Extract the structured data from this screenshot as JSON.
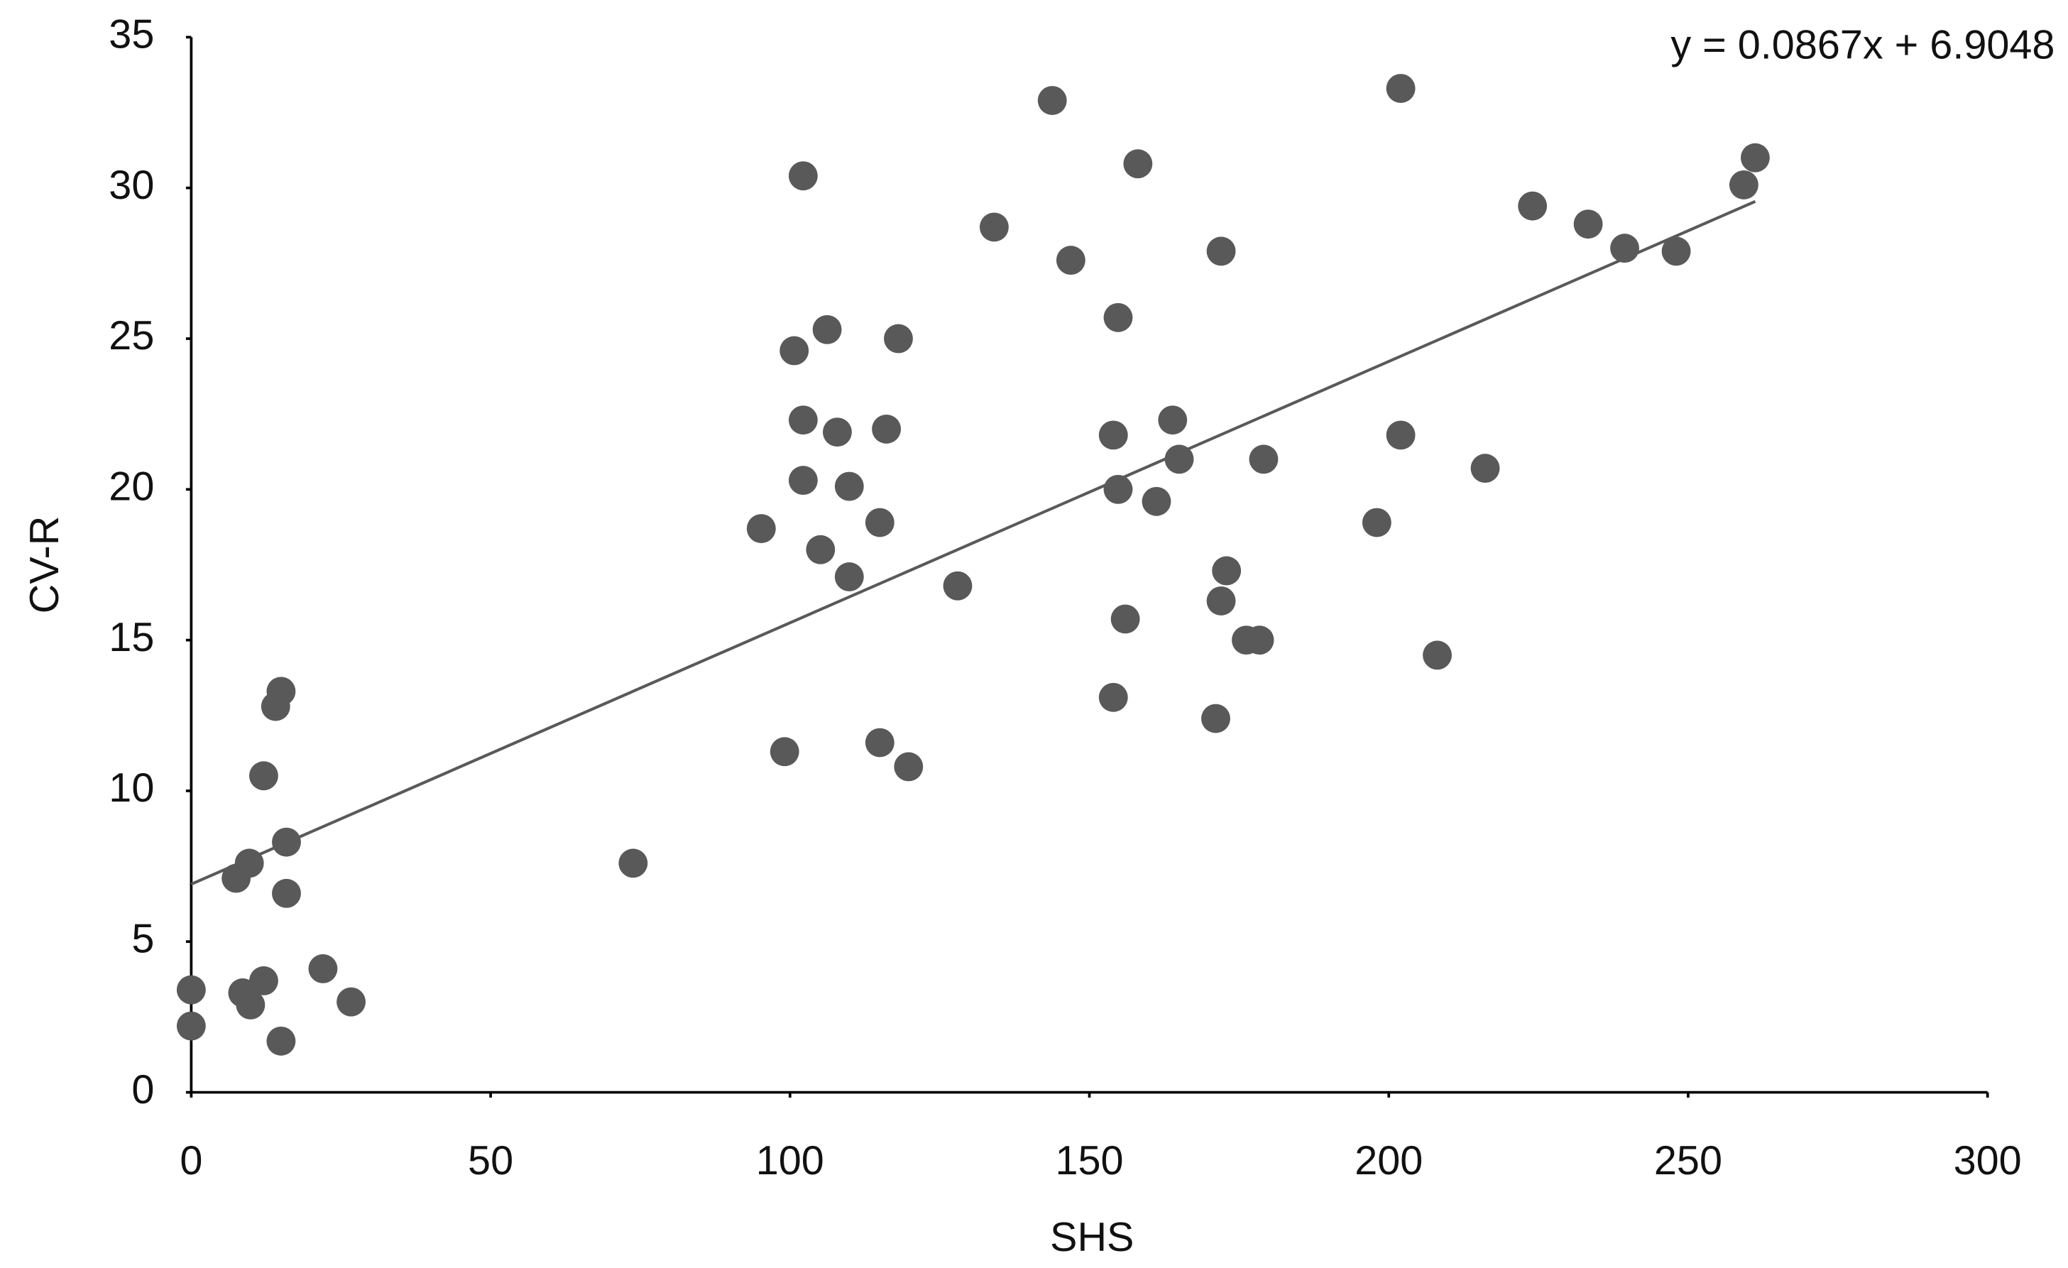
{
  "chart_data": {
    "type": "scatter",
    "x_label": "SHS",
    "y_label": "CV-R",
    "x": [
      0,
      0,
      7.5,
      9.7,
      8.6,
      9.9,
      12.1,
      12.1,
      14.1,
      15.0,
      15.9,
      15.9,
      15.0,
      22.0,
      26.7,
      73.8,
      95.2,
      99.1,
      100.7,
      102.2,
      102.2,
      102.2,
      105.1,
      106.2,
      107.9,
      109.9,
      109.9,
      115.0,
      115.0,
      116.1,
      118.1,
      119.8,
      128.0,
      134.1,
      143.8,
      146.9,
      154.0,
      154.0,
      154.8,
      154.8,
      156.0,
      158.1,
      161.2,
      163.9,
      165.0,
      171.1,
      172.0,
      172.0,
      172.9,
      176.2,
      178.4,
      179.1,
      198.0,
      202.0,
      202.0,
      208.1,
      216.1,
      224.0,
      233.3,
      239.4,
      248.0,
      259.3,
      261.2
    ],
    "values": [
      3.4,
      2.2,
      7.1,
      7.6,
      3.3,
      2.9,
      3.7,
      10.5,
      12.8,
      13.3,
      8.3,
      6.6,
      1.7,
      4.1,
      3.0,
      7.6,
      18.7,
      11.3,
      24.6,
      30.4,
      22.3,
      20.3,
      18.0,
      25.3,
      21.9,
      17.1,
      20.1,
      18.9,
      11.6,
      22.0,
      25.0,
      10.8,
      16.8,
      28.7,
      32.9,
      27.6,
      21.8,
      13.1,
      25.7,
      20.0,
      15.7,
      30.8,
      19.6,
      22.3,
      21.0,
      12.4,
      16.3,
      27.9,
      17.3,
      15.0,
      15.0,
      21.0,
      18.9,
      33.3,
      21.8,
      14.5,
      20.7,
      29.4,
      28.8,
      28.0,
      27.9,
      30.1,
      31.0
    ],
    "color": "#595959",
    "trendline": {
      "label": "y = 0.0867x + 6.9048",
      "slope": 0.0867,
      "intercept": 6.9048,
      "color": "#595959"
    },
    "xlim": [
      0,
      300
    ],
    "xticks": [
      0,
      50,
      100,
      150,
      200,
      250,
      300
    ],
    "ylim": [
      0,
      35
    ],
    "yticks": [
      0,
      5,
      10,
      15,
      20,
      25,
      30,
      35
    ],
    "grid": false
  }
}
